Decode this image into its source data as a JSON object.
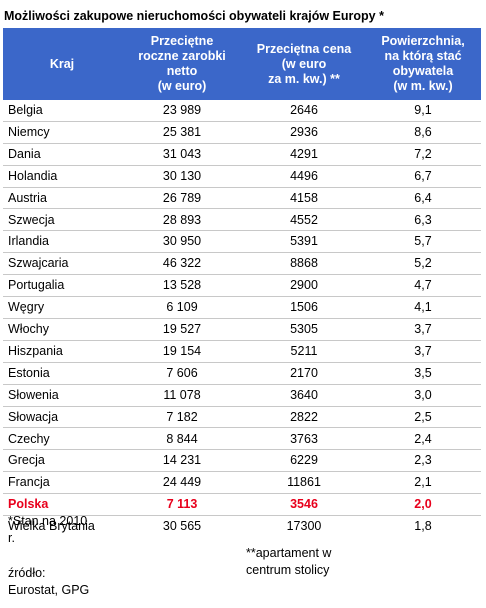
{
  "title": "Możliwości zakupowe nieruchomości obywateli krajów Europy *",
  "header": [
    [
      "Kraj"
    ],
    [
      "Przeciętne",
      "roczne zarobki",
      "netto",
      "(w euro)"
    ],
    [
      "Przeciętna cena",
      "(w euro",
      "za m. kw.) **"
    ],
    [
      "Powierzchnia,",
      "na którą stać",
      "obywatela",
      "(w m. kw.)"
    ]
  ],
  "rows": [
    [
      "Belgia",
      "23 989",
      "2646",
      "9,1"
    ],
    [
      "Niemcy",
      "25 381",
      "2936",
      "8,6"
    ],
    [
      "Dania",
      "31 043",
      "4291",
      "7,2"
    ],
    [
      "Holandia",
      "30 130",
      "4496",
      "6,7"
    ],
    [
      "Austria",
      "26 789",
      "4158",
      "6,4"
    ],
    [
      "Szwecja",
      "28 893",
      "4552",
      "6,3"
    ],
    [
      "Irlandia",
      "30 950",
      "5391",
      "5,7"
    ],
    [
      "Szwajcaria",
      "46 322",
      "8868",
      "5,2"
    ],
    [
      "Portugalia",
      "13 528",
      "2900",
      "4,7"
    ],
    [
      "Węgry",
      "6 109",
      "1506",
      "4,1"
    ],
    [
      "Włochy",
      "19 527",
      "5305",
      "3,7"
    ],
    [
      "Hiszpania",
      "19 154",
      "5211",
      "3,7"
    ],
    [
      "Estonia",
      "7 606",
      "2170",
      "3,5"
    ],
    [
      "Słowenia",
      "11 078",
      "3640",
      "3,0"
    ],
    [
      "Słowacja",
      "7 182",
      "2822",
      "2,5"
    ],
    [
      "Czechy",
      "8 844",
      "3763",
      "2,4"
    ],
    [
      "Grecja",
      "14 231",
      "6229",
      "2,3"
    ],
    [
      "Francja",
      "24 449",
      "11861",
      "2,1"
    ],
    [
      "Polska",
      "7 113",
      "3546",
      "2,0"
    ],
    [
      "Wielka Brytania",
      "30 565",
      "17300",
      "1,8"
    ]
  ],
  "highlight_row": 18,
  "footnote_1": [
    "*Stan na 2010",
    "r."
  ],
  "footnote_2": [
    "**apartament w",
    "centrum stolicy"
  ],
  "source": [
    "źródło:",
    "Eurostat, GPG"
  ]
}
